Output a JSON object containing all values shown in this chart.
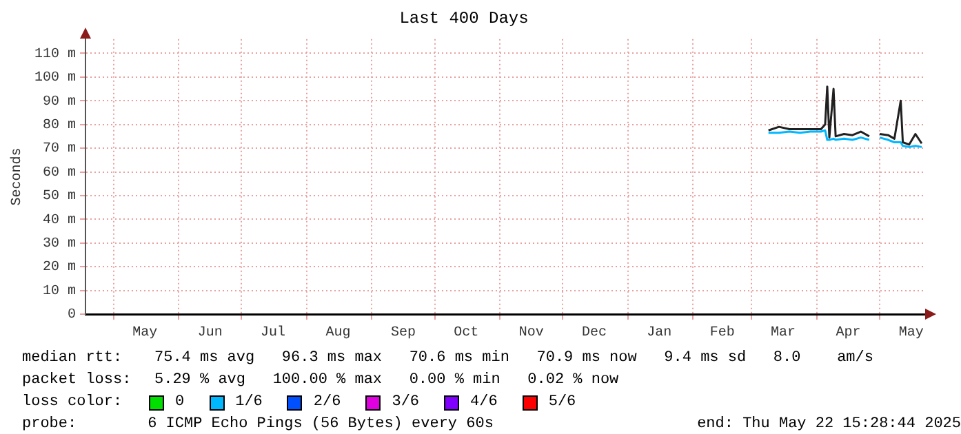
{
  "chart_data": {
    "type": "line",
    "title": "Last 400 Days",
    "ylabel": "Seconds",
    "x": [
      "2025-03-09",
      "2025-03-14",
      "2025-03-19",
      "2025-03-24",
      "2025-03-29",
      "2025-04-03",
      "2025-04-05",
      "2025-04-06",
      "2025-04-07",
      "2025-04-09",
      "2025-04-10",
      "2025-04-14",
      "2025-04-18",
      "2025-04-22",
      "2025-04-26",
      "2025-04-29",
      "2025-05-01",
      "2025-05-05",
      "2025-05-08",
      "2025-05-11",
      "2025-05-12",
      "2025-05-15",
      "2025-05-18",
      "2025-05-21"
    ],
    "series": [
      {
        "color": "#202020",
        "values": [
          77.5,
          79,
          78,
          78,
          78,
          78,
          80,
          96,
          74.5,
          95,
          75,
          76,
          75.5,
          77,
          75,
          null,
          76,
          75.5,
          74,
          90,
          72.5,
          71.5,
          76,
          72
        ]
      },
      {
        "color": "#00b8ff",
        "values": [
          76.5,
          76.5,
          77,
          76.5,
          77,
          77,
          77.5,
          73.5,
          73.5,
          74,
          73.5,
          74,
          73.5,
          74.5,
          73.5,
          null,
          74.5,
          73.5,
          72.5,
          72.5,
          71,
          70.5,
          71,
          70.5
        ]
      }
    ],
    "xlim": [
      "2024-04-17T15:28",
      "2025-05-22T15:28"
    ],
    "xticks": [
      {
        "value": "2024-05-01",
        "label": null
      },
      {
        "value": "2024-05-16",
        "label": "May"
      },
      {
        "value": "2024-06-01",
        "label": null
      },
      {
        "value": "2024-06-16",
        "label": "Jun"
      },
      {
        "value": "2024-07-01",
        "label": null
      },
      {
        "value": "2024-07-16",
        "label": "Jul"
      },
      {
        "value": "2024-08-01",
        "label": null
      },
      {
        "value": "2024-08-16",
        "label": "Aug"
      },
      {
        "value": "2024-09-01",
        "label": null
      },
      {
        "value": "2024-09-16",
        "label": "Sep"
      },
      {
        "value": "2024-10-01",
        "label": null
      },
      {
        "value": "2024-10-16",
        "label": "Oct"
      },
      {
        "value": "2024-11-01",
        "label": null
      },
      {
        "value": "2024-11-16",
        "label": "Nov"
      },
      {
        "value": "2024-12-01",
        "label": null
      },
      {
        "value": "2024-12-16",
        "label": "Dec"
      },
      {
        "value": "2025-01-01",
        "label": null
      },
      {
        "value": "2025-01-16",
        "label": "Jan"
      },
      {
        "value": "2025-02-01",
        "label": null
      },
      {
        "value": "2025-02-15",
        "label": "Feb"
      },
      {
        "value": "2025-03-01",
        "label": null
      },
      {
        "value": "2025-03-16",
        "label": "Mar"
      },
      {
        "value": "2025-04-01",
        "label": null
      },
      {
        "value": "2025-04-16",
        "label": "Apr"
      },
      {
        "value": "2025-05-01",
        "label": null
      },
      {
        "value": "2025-05-16",
        "label": "May"
      }
    ],
    "ylim": [
      0,
      116
    ],
    "yticks": [
      0,
      {
        "value": 10,
        "label": "10 m"
      },
      {
        "value": 20,
        "label": "20 m"
      },
      {
        "value": 30,
        "label": "30 m"
      },
      {
        "value": 40,
        "label": "40 m"
      },
      {
        "value": 50,
        "label": "50 m"
      },
      {
        "value": 60,
        "label": "60 m"
      },
      {
        "value": 70,
        "label": "70 m"
      },
      {
        "value": 80,
        "label": "80 m"
      },
      {
        "value": 90,
        "label": "90 m"
      },
      {
        "value": 100,
        "label": "100 m"
      },
      {
        "value": 110,
        "label": "110 m"
      }
    ],
    "grid": true,
    "marker": "none",
    "line_style": "solid",
    "annotations": [
      "median rtt:",
      "75.4 ms avg   96.3 ms max   70.6 ms min   70.9 ms now   9.4 ms sd   8.0    am/s",
      "packet loss:",
      "5.29 % avg   100.00 % max   0.00 % min   0.02 % now",
      "loss color:",
      "0",
      "1/6",
      "2/6",
      "3/6",
      "4/6",
      "5/6",
      "probe:",
      "6 ICMP Echo Pings (56 Bytes) every 60s",
      "end: Thu May 22 15:28:44 2025"
    ]
  }
}
